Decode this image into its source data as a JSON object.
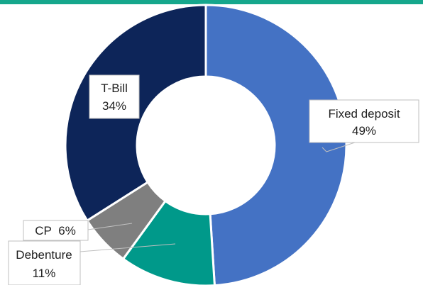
{
  "chart_data": {
    "type": "pie",
    "donut": true,
    "categories": [
      "Fixed deposit",
      "Debenture",
      "CP",
      "T-Bill"
    ],
    "values": [
      49,
      11,
      6,
      34
    ],
    "labels": [
      {
        "name": "Fixed deposit",
        "value": "49%"
      },
      {
        "name": "Debenture",
        "value": "11%"
      },
      {
        "name": "CP",
        "value": "6%"
      },
      {
        "name": "T-Bill",
        "value": "34%"
      }
    ],
    "colors": [
      "#4472C4",
      "#00998A",
      "#7F7F7F",
      "#0D2559"
    ]
  },
  "theme": {
    "top_rule_color": "#16A78C"
  }
}
